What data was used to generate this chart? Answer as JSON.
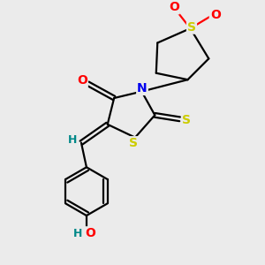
{
  "background_color": "#ebebeb",
  "atom_colors": {
    "C": "#000000",
    "N": "#0000ee",
    "O": "#ff0000",
    "S": "#cccc00",
    "H": "#008888"
  },
  "bond_color": "#000000",
  "bond_lw": 1.6,
  "figsize": [
    3.0,
    3.0
  ],
  "dpi": 100,
  "xlim": [
    0,
    10
  ],
  "ylim": [
    0,
    10
  ]
}
